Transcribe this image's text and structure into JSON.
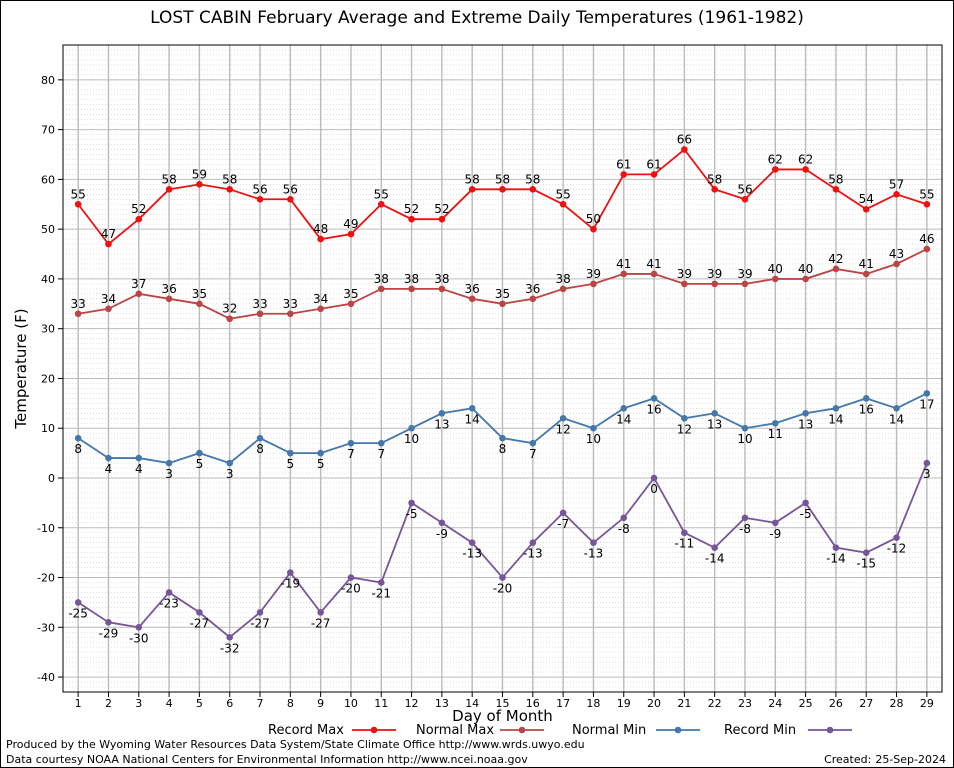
{
  "chart_data": {
    "type": "line",
    "title": "LOST CABIN February Average and Extreme Daily Temperatures (1961-1982)",
    "xlabel": "Day of Month",
    "ylabel": "Temperature (F)",
    "xlim": [
      0.5,
      29.5
    ],
    "ylim": [
      -43,
      87
    ],
    "yticks": [
      -40,
      -30,
      -20,
      -10,
      0,
      10,
      20,
      30,
      40,
      50,
      60,
      70,
      80
    ],
    "x": [
      1,
      2,
      3,
      4,
      5,
      6,
      7,
      8,
      9,
      10,
      11,
      12,
      13,
      14,
      15,
      16,
      17,
      18,
      19,
      20,
      21,
      22,
      23,
      24,
      25,
      26,
      27,
      28,
      29
    ],
    "grid": true,
    "legend_position": "bottom",
    "series": [
      {
        "name": "Record Max",
        "color": "#ee1111",
        "label_position": "above",
        "values": [
          55,
          47,
          52,
          58,
          59,
          58,
          56,
          56,
          48,
          49,
          55,
          52,
          52,
          58,
          58,
          58,
          55,
          50,
          61,
          61,
          66,
          58,
          56,
          62,
          62,
          58,
          54,
          57,
          55
        ]
      },
      {
        "name": "Normal Max",
        "color": "#bb4444",
        "label_position": "above",
        "values": [
          33,
          34,
          37,
          36,
          35,
          32,
          33,
          33,
          34,
          35,
          38,
          38,
          38,
          36,
          35,
          36,
          38,
          39,
          41,
          41,
          39,
          39,
          39,
          40,
          40,
          42,
          41,
          43,
          46
        ]
      },
      {
        "name": "Normal Min",
        "color": "#4477aa",
        "label_position": "below",
        "values": [
          8,
          4,
          4,
          3,
          5,
          3,
          8,
          5,
          5,
          7,
          7,
          10,
          13,
          14,
          8,
          7,
          12,
          10,
          14,
          16,
          12,
          13,
          10,
          11,
          13,
          14,
          16,
          14,
          17
        ]
      },
      {
        "name": "Record Min",
        "color": "#775599",
        "label_position": "below",
        "values": [
          -25,
          -29,
          -30,
          -23,
          -27,
          -32,
          -27,
          -19,
          -27,
          -20,
          -21,
          -5,
          -9,
          -13,
          -20,
          -13,
          -7,
          -13,
          -8,
          0,
          -11,
          -14,
          -8,
          -9,
          -5,
          -14,
          -15,
          -12,
          3
        ]
      }
    ]
  },
  "footer": {
    "produced_by": "Produced by the Wyoming Water Resources Data System/State Climate Office http://www.wrds.uwyo.edu",
    "courtesy": "Data courtesy NOAA National Centers for Environmental Information http://www.ncei.noaa.gov",
    "created_label": "Created:",
    "created_date": "25-Sep-2024"
  }
}
